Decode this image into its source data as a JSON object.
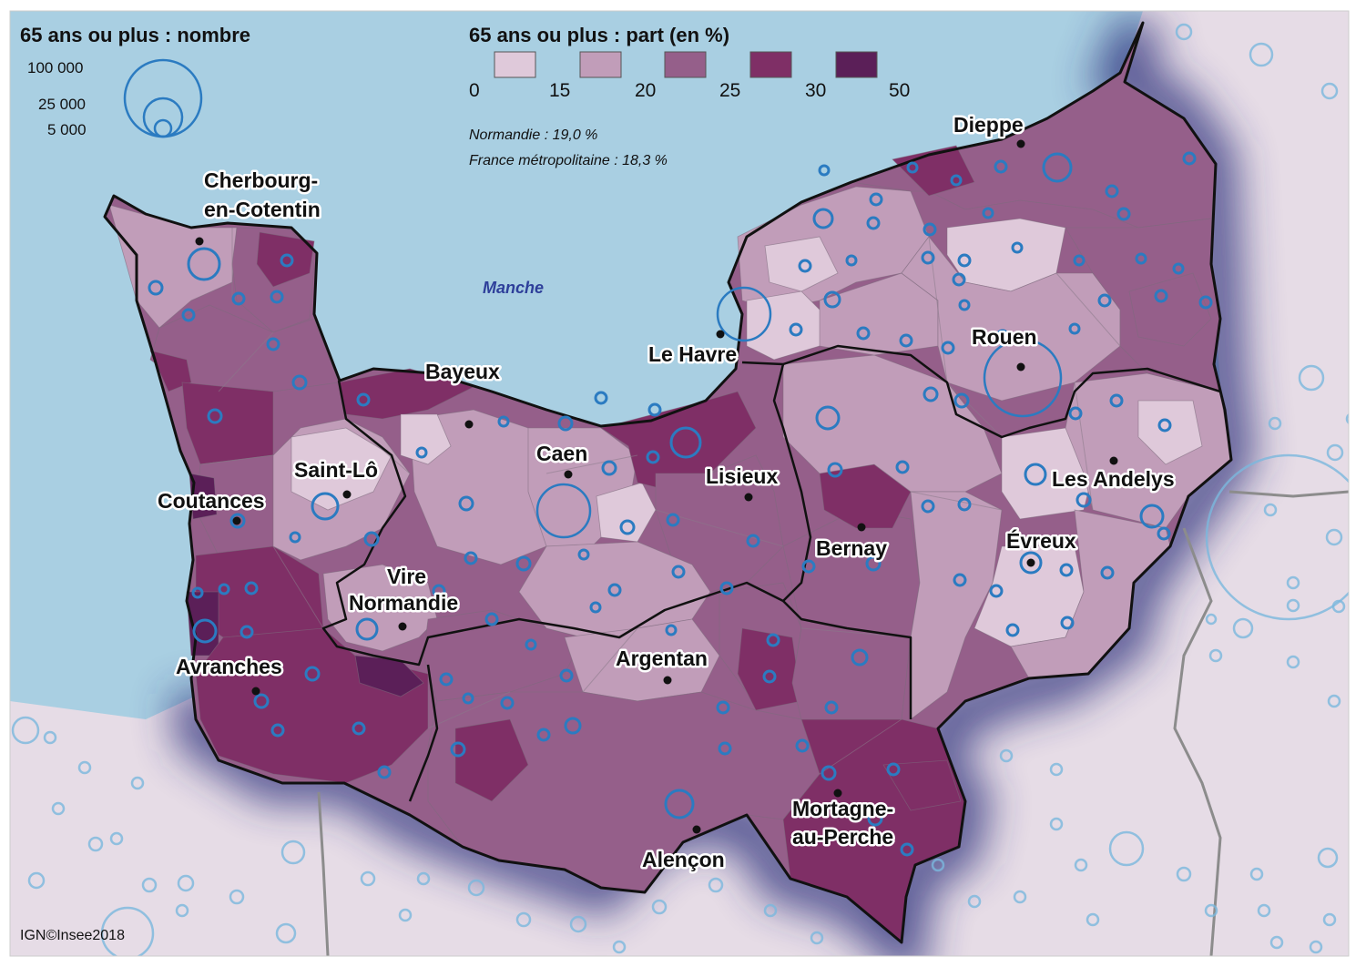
{
  "colors": {
    "sea": "#a9cfe2",
    "outside_land": "#e6dce6",
    "class_0_15": "#dfc9da",
    "class_15_20": "#c19db9",
    "class_20_25": "#955f8a",
    "class_25_30": "#7f2f66",
    "class_30_50": "#5b1f58",
    "circle": "#2b7bc1",
    "glow": "#2c2f7a",
    "boundary": "#111111"
  },
  "legend_size": {
    "title": "65 ans ou plus : nombre",
    "labels": [
      "100 000",
      "25 000",
      "5 000"
    ],
    "values": [
      100000,
      25000,
      5000
    ]
  },
  "legend_share": {
    "title": "65 ans ou plus : part (en %)",
    "breaks": [
      "0",
      "15",
      "20",
      "25",
      "30",
      "50"
    ],
    "classes": [
      {
        "min": 0,
        "max": 15,
        "color_key": "class_0_15"
      },
      {
        "min": 15,
        "max": 20,
        "color_key": "class_15_20"
      },
      {
        "min": 20,
        "max": 25,
        "color_key": "class_20_25"
      },
      {
        "min": 25,
        "max": 30,
        "color_key": "class_25_30"
      },
      {
        "min": 30,
        "max": 50,
        "color_key": "class_30_50"
      }
    ]
  },
  "notes": {
    "normandie": "Normandie : 19,0 %",
    "france": "France métropolitaine : 18,3 %"
  },
  "sea_label": "Manche",
  "credit": "IGN©Insee2018",
  "cities": {
    "cherbourg_1": "Cherbourg-",
    "cherbourg_2": "en-Cotentin",
    "dieppe": "Dieppe",
    "le_havre": "Le Havre",
    "rouen": "Rouen",
    "bayeux": "Bayeux",
    "caen": "Caen",
    "saint_lo": "Saint-Lô",
    "lisieux": "Lisieux",
    "coutances": "Coutances",
    "les_andelys": "Les Andelys",
    "bernay": "Bernay",
    "evreux": "Évreux",
    "vire_1": "Vire",
    "vire_2": "Normandie",
    "argentan": "Argentan",
    "avranches": "Avranches",
    "mortagne_1": "Mortagne-",
    "mortagne_2": "au-Perche",
    "alencon": "Alençon"
  }
}
